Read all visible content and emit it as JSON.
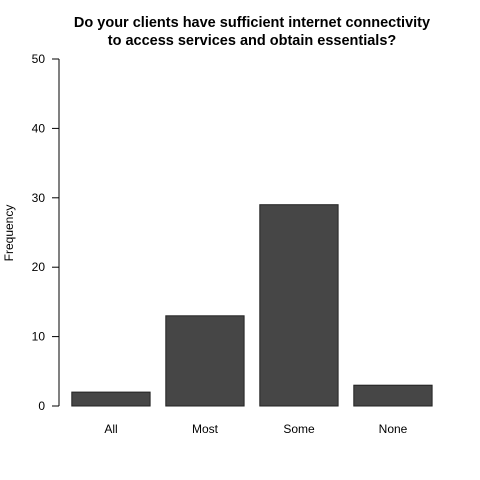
{
  "chart_data": {
    "type": "bar",
    "title_lines": [
      "Do your clients have sufficient internet connectivity",
      "to access services and obtain essentials?"
    ],
    "xlabel": "",
    "ylabel": "Frequency",
    "categories": [
      "All",
      "Most",
      "Some",
      "None"
    ],
    "values": [
      2,
      13,
      29,
      3
    ],
    "ylim": [
      0,
      50
    ],
    "yticks": [
      0,
      10,
      20,
      30,
      40,
      50
    ],
    "grid": false,
    "bar_color": "#464646"
  }
}
